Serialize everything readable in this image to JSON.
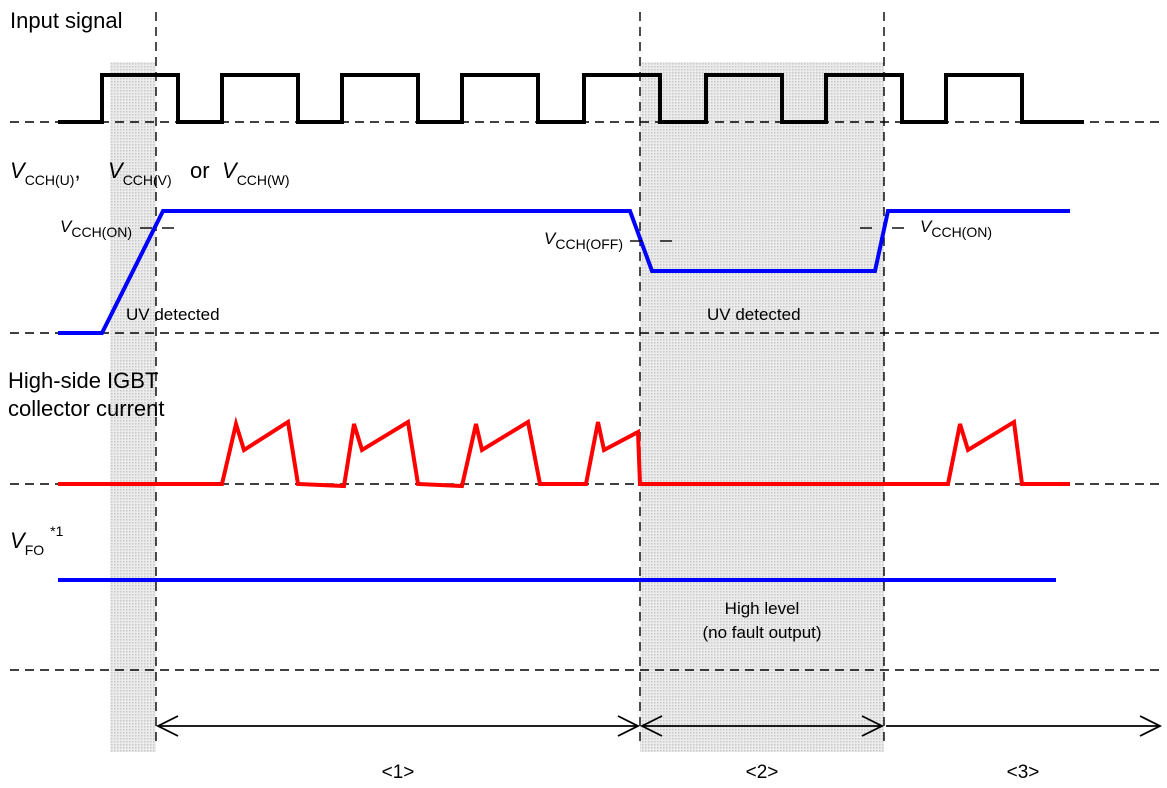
{
  "labels": {
    "input_signal": "Input signal",
    "vcch_v": "V",
    "vcch_u_sub": "CCH(U)",
    "vcch_sep1": ",",
    "vcch_v_sub": "CCH(V)",
    "vcch_or": "or",
    "vcch_w_sub": "CCH(W)",
    "vcch_on_sub": "CCH(ON)",
    "vcch_off_sub": "CCH(OFF)",
    "uv_detected_1": "UV detected",
    "uv_detected_2": "UV detected",
    "igbt_line1": "High-side IGBT",
    "igbt_line2": "collector current",
    "vfo_sub": "FO",
    "vfo_note": "*1",
    "high_level_line1": "High level",
    "high_level_line2": "(no fault output)"
  },
  "phases": [
    "<1>",
    "<2>",
    "<3>"
  ],
  "colors": {
    "input_signal": "#000000",
    "vcch": "#0000ff",
    "collector_current": "#ff0000",
    "vfo": "#0000ff",
    "uv_region": "#d8d8d8"
  }
}
